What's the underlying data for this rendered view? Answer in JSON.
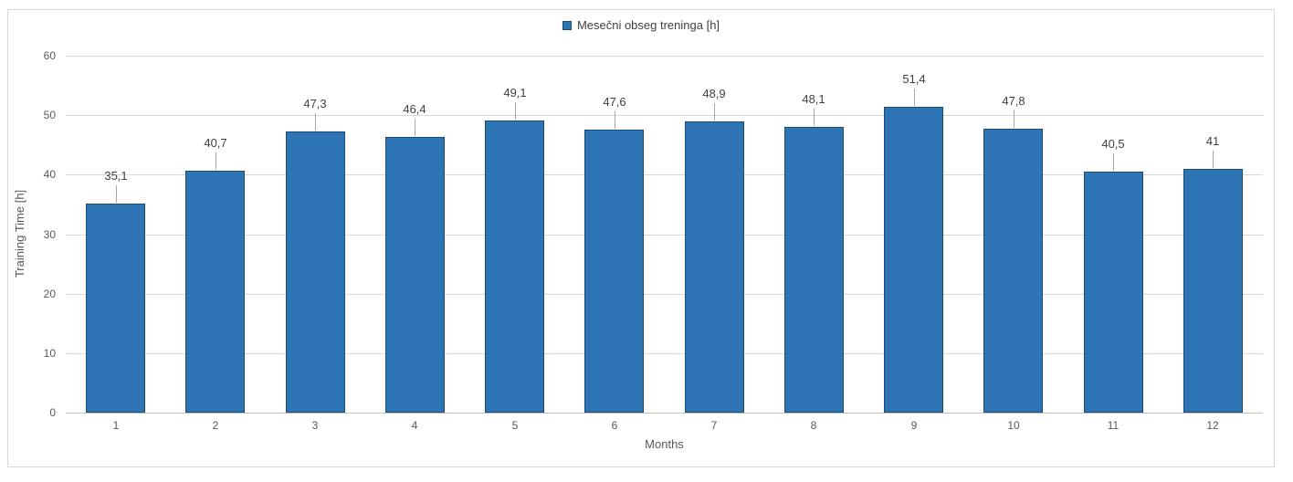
{
  "chart_data": {
    "type": "bar",
    "legend": "Mesečni obseg treninga [h]",
    "legend_position": "top-center",
    "categories": [
      "1",
      "2",
      "3",
      "4",
      "5",
      "6",
      "7",
      "8",
      "9",
      "10",
      "11",
      "12"
    ],
    "values": [
      35.1,
      40.7,
      47.3,
      46.4,
      49.1,
      47.6,
      48.9,
      48.1,
      51.4,
      47.8,
      40.5,
      41
    ],
    "data_labels": [
      "35,1",
      "40,7",
      "47,3",
      "46,4",
      "49,1",
      "47,6",
      "48,9",
      "48,1",
      "51,4",
      "47,8",
      "40,5",
      "41"
    ],
    "xlabel": "Months",
    "ylabel": "Training Time [h]",
    "ylim": [
      0,
      60
    ],
    "yticks": [
      0,
      10,
      20,
      30,
      40,
      50,
      60
    ],
    "grid": true,
    "colors": {
      "bar_fill": "#2E75B6",
      "bar_border": "#1E4A72",
      "gridline": "#D9D9D9",
      "axis_line": "#BFBFBF",
      "axis_text": "#595959",
      "label_text": "#404040",
      "frame_border": "#D9D9D9",
      "leader_line": "#A6A6A6",
      "background": "#FFFFFF"
    }
  }
}
